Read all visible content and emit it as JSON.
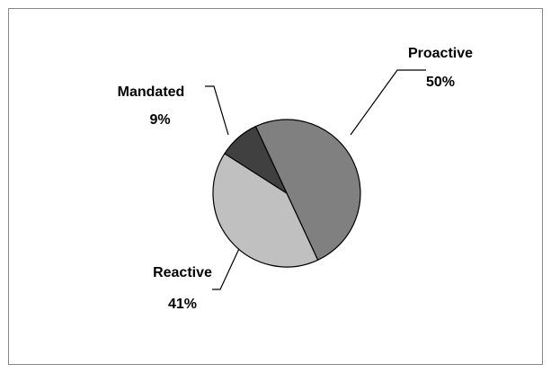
{
  "chart_data": {
    "type": "pie",
    "categories": [
      "Proactive",
      "Reactive",
      "Mandated"
    ],
    "values": [
      50,
      41,
      9
    ],
    "value_labels": [
      "50%",
      "41%",
      "9%"
    ],
    "colors": [
      "#808080",
      "#c0c0c0",
      "#404040"
    ]
  }
}
